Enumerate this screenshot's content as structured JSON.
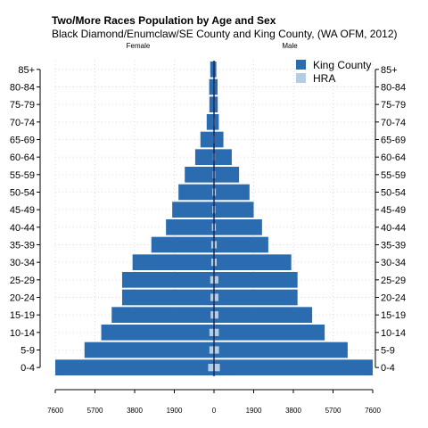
{
  "chart_data": {
    "type": "bar",
    "orientation": "horizontal-pyramid",
    "title": "Two/More Races Population by Age and Sex",
    "subtitle": "Black Diamond/Enumclaw/SE County and King County, (WA OFM, 2012)",
    "left_label": "Female",
    "right_label": "Male",
    "categories": [
      "0-4",
      "5-9",
      "10-14",
      "15-19",
      "20-24",
      "25-29",
      "30-34",
      "35-39",
      "40-44",
      "45-49",
      "50-54",
      "55-59",
      "60-64",
      "65-69",
      "70-74",
      "75-79",
      "80-84",
      "85+"
    ],
    "x_ticks": [
      "7600",
      "5700",
      "3800",
      "1900",
      "0",
      "1900",
      "3800",
      "5700",
      "7600"
    ],
    "xlim": [
      -7600,
      7600
    ],
    "grid": true,
    "legend_position": "top-right",
    "series": [
      {
        "name": "King County",
        "color": "#2b6cb0",
        "female": [
          7600,
          6200,
          5400,
          4900,
          4400,
          4400,
          3900,
          3000,
          2300,
          2000,
          1700,
          1400,
          900,
          650,
          350,
          220,
          230,
          180
        ],
        "male": [
          7600,
          6400,
          5300,
          4700,
          4000,
          4000,
          3700,
          2600,
          2300,
          1900,
          1700,
          1200,
          850,
          450,
          230,
          180,
          170,
          110
        ]
      },
      {
        "name": "HRA",
        "color": "#b3cde3",
        "female": [
          280,
          220,
          220,
          160,
          170,
          180,
          130,
          130,
          100,
          80,
          80,
          60,
          50,
          40,
          30,
          20,
          20,
          20
        ],
        "male": [
          280,
          240,
          230,
          210,
          210,
          210,
          130,
          130,
          90,
          70,
          90,
          60,
          50,
          40,
          40,
          30,
          30,
          20
        ]
      }
    ]
  }
}
